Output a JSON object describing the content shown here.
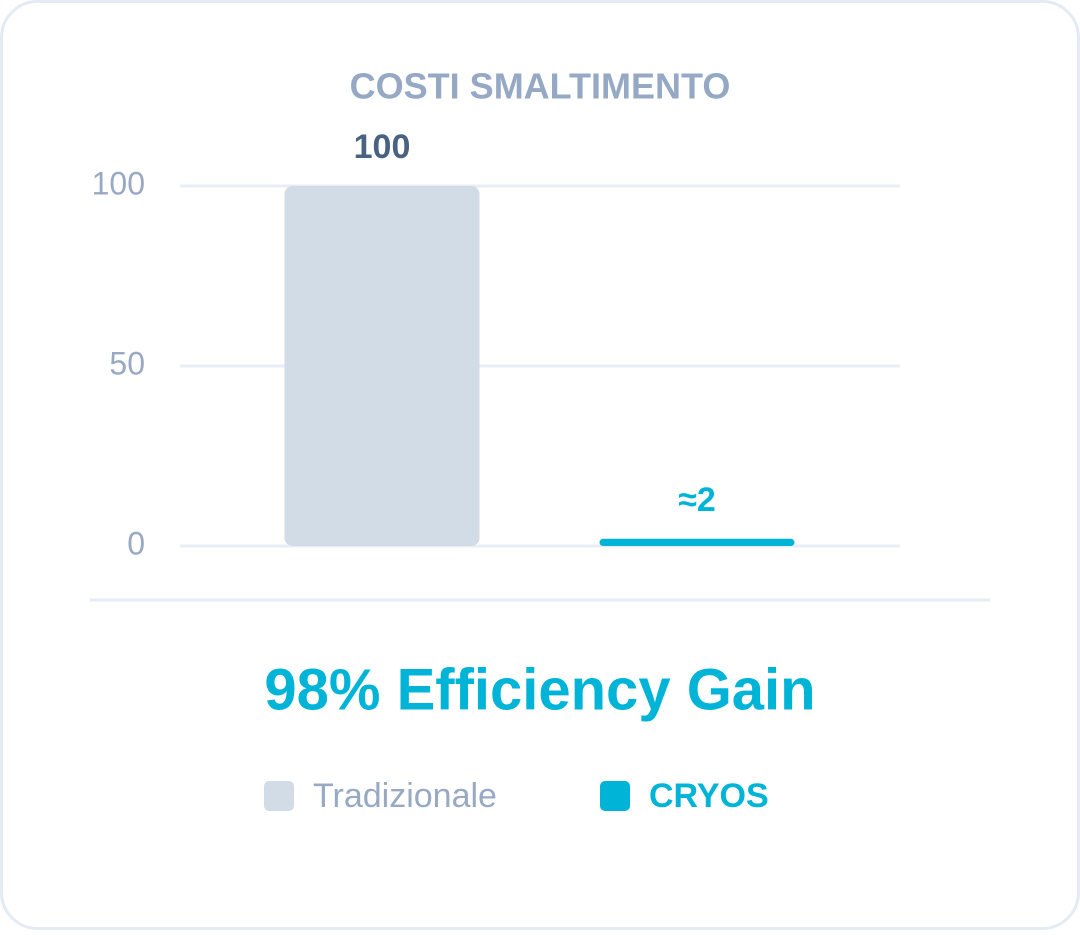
{
  "chart_data": {
    "type": "bar",
    "title": "COSTI SMALTIMENTO",
    "categories": [
      "Tradizionale",
      "CRYOS"
    ],
    "values": [
      100,
      2
    ],
    "value_labels": [
      "100",
      "≈2"
    ],
    "colors": [
      "#d1dce7",
      "#00b4d8"
    ],
    "value_label_colors": [
      "#4a6282",
      "#00b4d8"
    ],
    "ylim": [
      0,
      100
    ],
    "yticks": [
      0,
      50,
      100
    ],
    "grid": true,
    "annotation": "98% Efficiency Gain"
  }
}
